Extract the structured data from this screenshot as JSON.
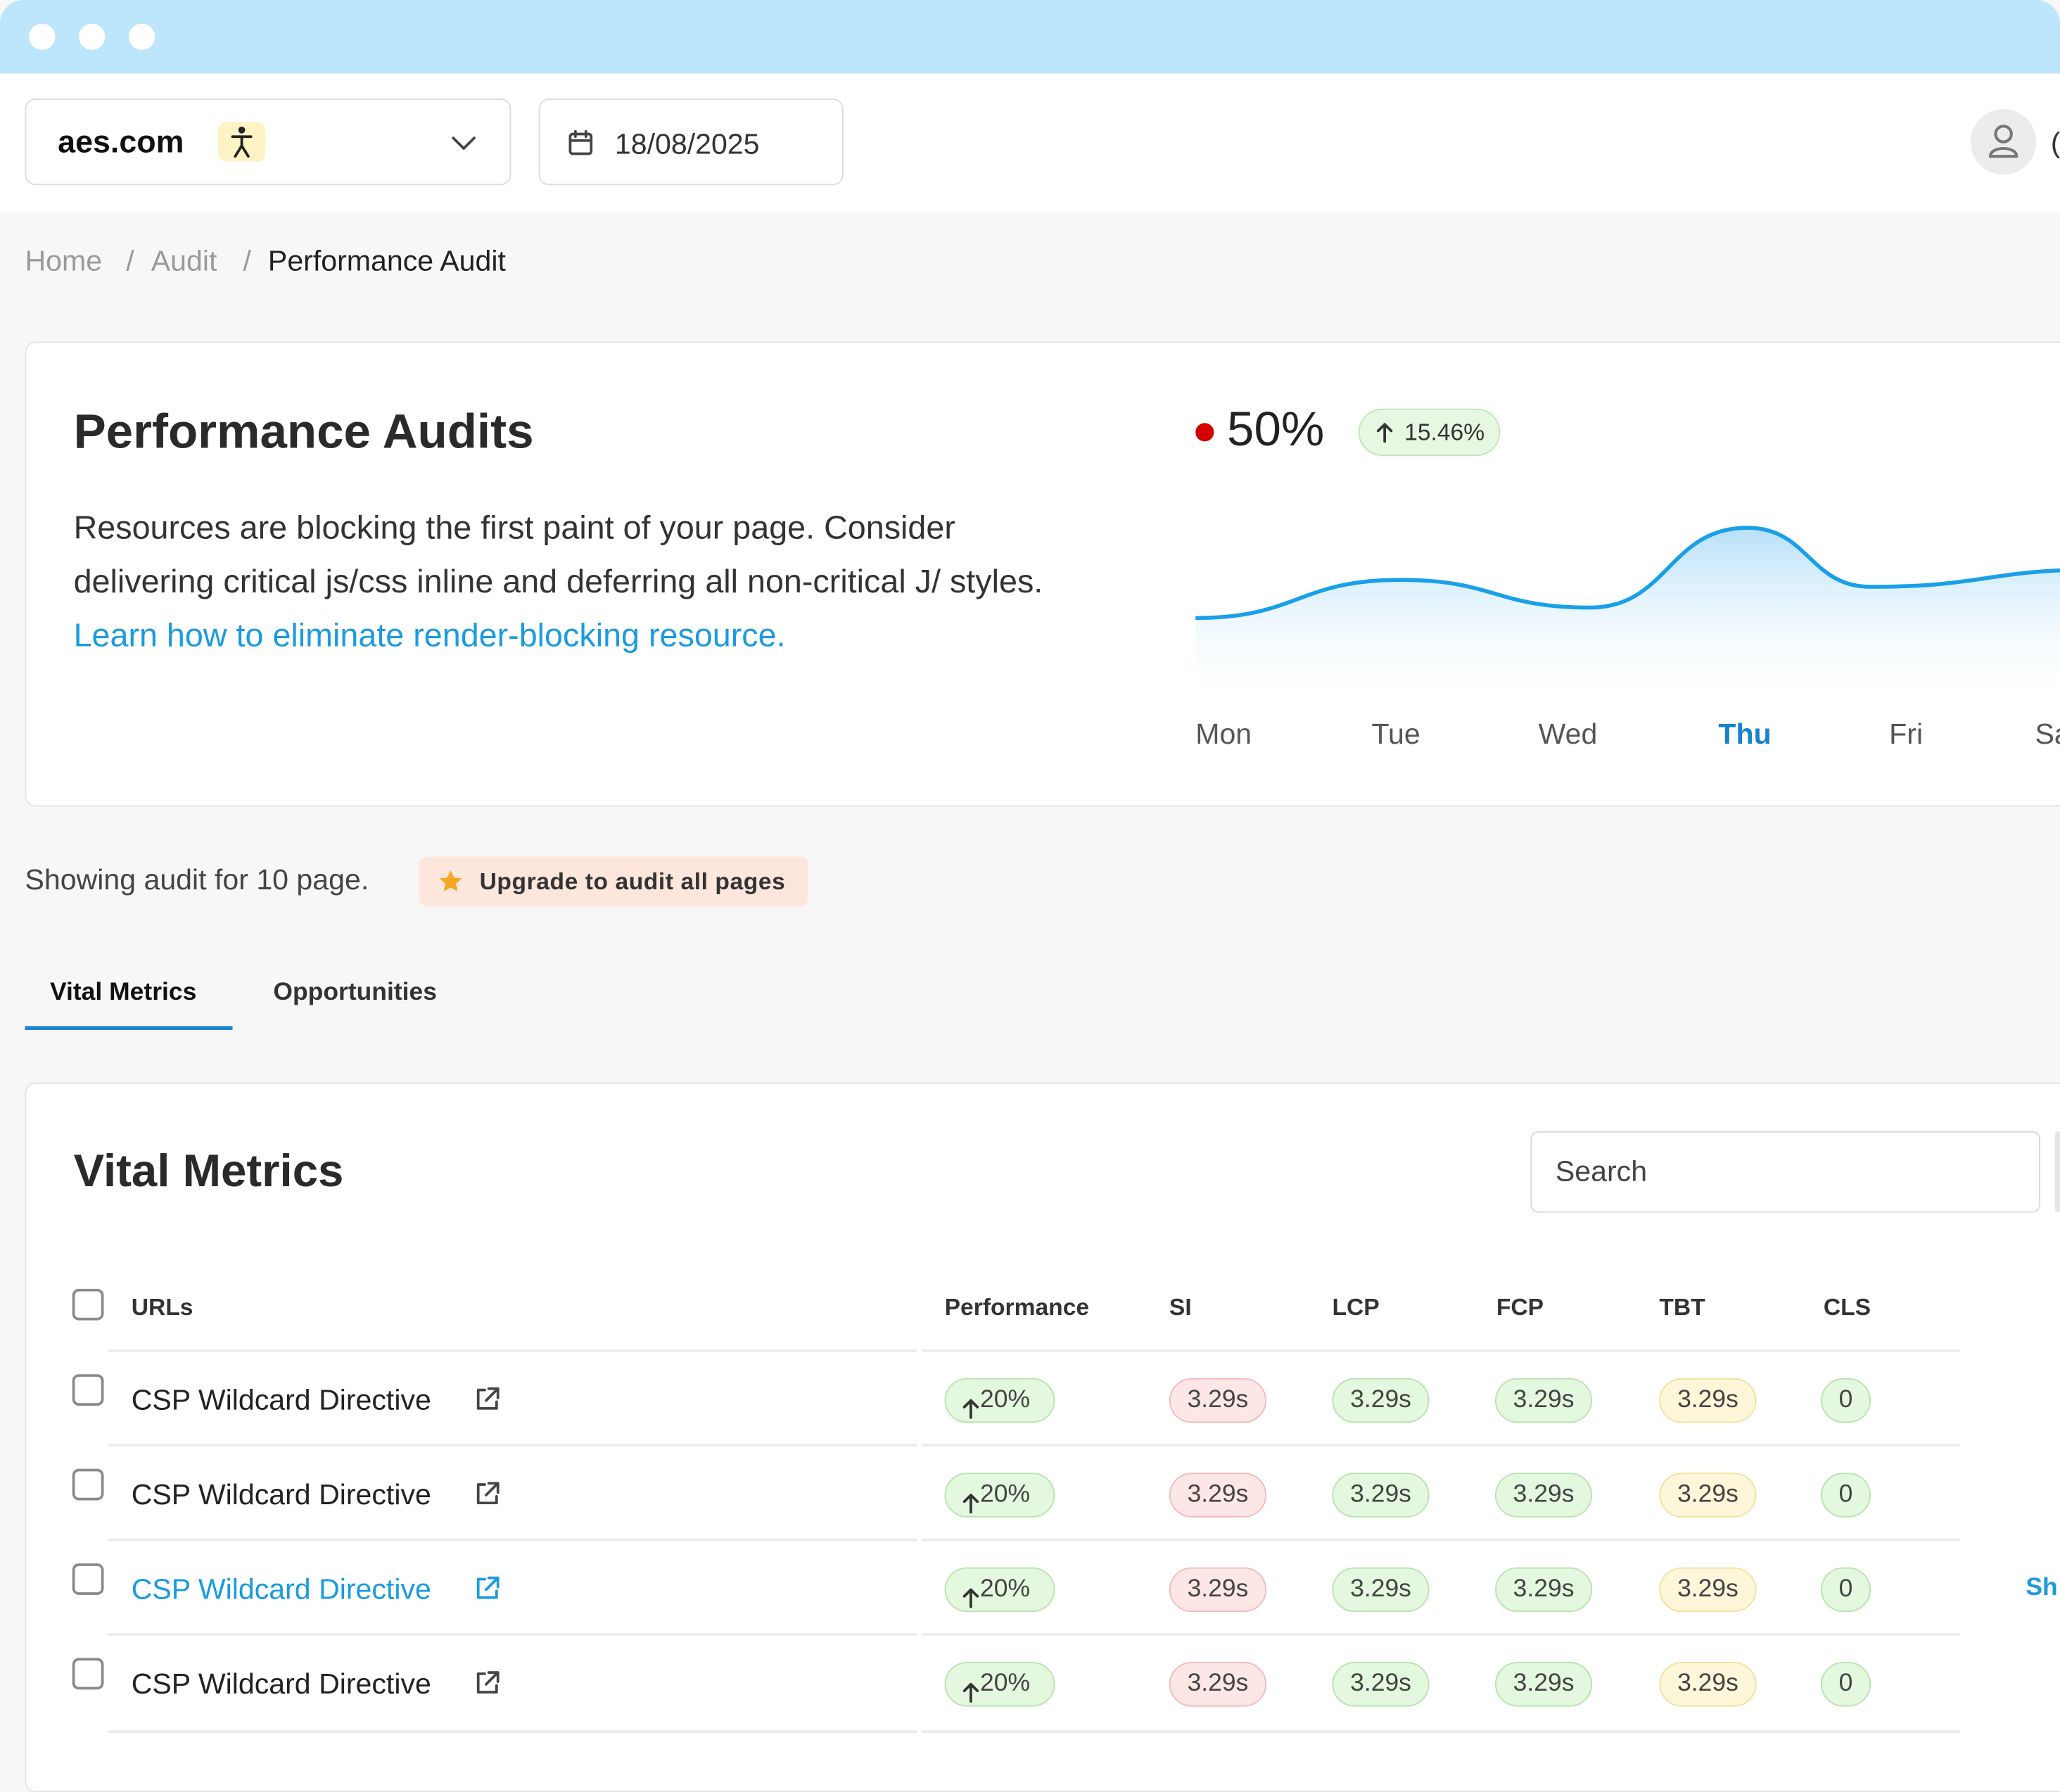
{
  "window": {
    "controls": [
      "close",
      "minimize",
      "maximize"
    ]
  },
  "header": {
    "site_name": "aes.com",
    "site_badge_icon": "accessibility-icon",
    "date": "18/08/2025",
    "user_initial_partial": "("
  },
  "breadcrumb": {
    "items": [
      "Home",
      "Audit",
      "Performance Audit"
    ],
    "separator": "/"
  },
  "summary": {
    "title": "Performance Audits",
    "description": "Resources are blocking the first paint of your page. Consider delivering critical js/css inline and deferring all non-critical J/ styles.",
    "link_text": "Learn how to eliminate render-blocking resource.",
    "score": "50%",
    "score_dot_color": "#d40000",
    "delta": "15.46%"
  },
  "chart_data": {
    "type": "area",
    "categories": [
      "Mon",
      "Tue",
      "Wed",
      "Thu",
      "Fri",
      "Sa"
    ],
    "highlighted": "Thu",
    "values": [
      30,
      52,
      36,
      82,
      48,
      58
    ],
    "ylim": [
      0,
      100
    ],
    "grid": false,
    "line_color": "#1aa0e8"
  },
  "audit": {
    "showing_text": "Showing audit for 10 page.",
    "upgrade_label": "Upgrade to audit all pages"
  },
  "tabs": [
    {
      "label": "Vital Metrics",
      "active": true
    },
    {
      "label": "Opportunities",
      "active": false
    }
  ],
  "metrics": {
    "title": "Vital Metrics",
    "search_placeholder": "Search",
    "columns": [
      "URLs",
      "Performance",
      "SI",
      "LCP",
      "FCP",
      "TBT",
      "CLS"
    ],
    "rows": [
      {
        "url": "CSP Wildcard Directive",
        "performance": "20%",
        "si": "3.29s",
        "lcp": "3.29s",
        "fcp": "3.29s",
        "tbt": "3.29s",
        "cls": "0",
        "highlight": false
      },
      {
        "url": "CSP Wildcard Directive",
        "performance": "20%",
        "si": "3.29s",
        "lcp": "3.29s",
        "fcp": "3.29s",
        "tbt": "3.29s",
        "cls": "0",
        "highlight": false
      },
      {
        "url": "CSP Wildcard Directive",
        "performance": "20%",
        "si": "3.29s",
        "lcp": "3.29s",
        "fcp": "3.29s",
        "tbt": "3.29s",
        "cls": "0",
        "highlight": true,
        "action": "Sh"
      },
      {
        "url": "CSP Wildcard Directive",
        "performance": "20%",
        "si": "3.29s",
        "lcp": "3.29s",
        "fcp": "3.29s",
        "tbt": "3.29s",
        "cls": "0",
        "highlight": false
      }
    ]
  }
}
